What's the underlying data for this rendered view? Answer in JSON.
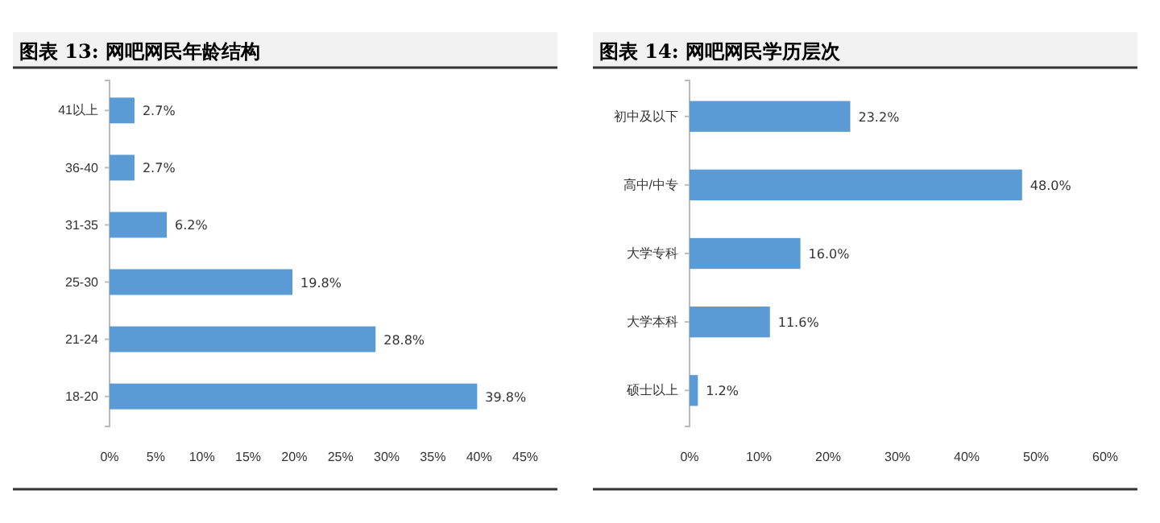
{
  "chart_data": [
    {
      "type": "bar",
      "orientation": "horizontal",
      "title": "图表 13:  网吧网民年龄结构",
      "categories": [
        "41以上",
        "36-40",
        "31-35",
        "25-30",
        "21-24",
        "18-20"
      ],
      "values": [
        2.7,
        2.7,
        6.2,
        19.8,
        28.8,
        39.8
      ],
      "value_labels": [
        "2.7%",
        "2.7%",
        "6.2%",
        "19.8%",
        "28.8%",
        "39.8%"
      ],
      "color": "#5b9bd5",
      "xlim": [
        0,
        45
      ],
      "xticks": [
        {
          "value": 0,
          "label": "0%"
        },
        {
          "value": 5,
          "label": "5%"
        },
        {
          "value": 10,
          "label": "10%"
        },
        {
          "value": 15,
          "label": "15%"
        },
        {
          "value": 20,
          "label": "20%"
        },
        {
          "value": 25,
          "label": "25%"
        },
        {
          "value": 30,
          "label": "30%"
        },
        {
          "value": 35,
          "label": "35%"
        },
        {
          "value": 40,
          "label": "40%"
        },
        {
          "value": 45,
          "label": "45%"
        }
      ],
      "grid": false
    },
    {
      "type": "bar",
      "orientation": "horizontal",
      "title": "图表 14:  网吧网民学历层次",
      "categories": [
        "初中及以下",
        "高中/中专",
        "大学专科",
        "大学本科",
        "硕士以上"
      ],
      "values": [
        23.2,
        48.0,
        16.0,
        11.6,
        1.2
      ],
      "value_labels": [
        "23.2%",
        "48.0%",
        "16.0%",
        "11.6%",
        "1.2%"
      ],
      "color": "#5b9bd5",
      "xlim": [
        0,
        60
      ],
      "xticks": [
        {
          "value": 0,
          "label": "0%"
        },
        {
          "value": 10,
          "label": "10%"
        },
        {
          "value": 20,
          "label": "20%"
        },
        {
          "value": 30,
          "label": "30%"
        },
        {
          "value": 40,
          "label": "40%"
        },
        {
          "value": 50,
          "label": "50%"
        },
        {
          "value": 60,
          "label": "60%"
        }
      ],
      "grid": false
    }
  ]
}
